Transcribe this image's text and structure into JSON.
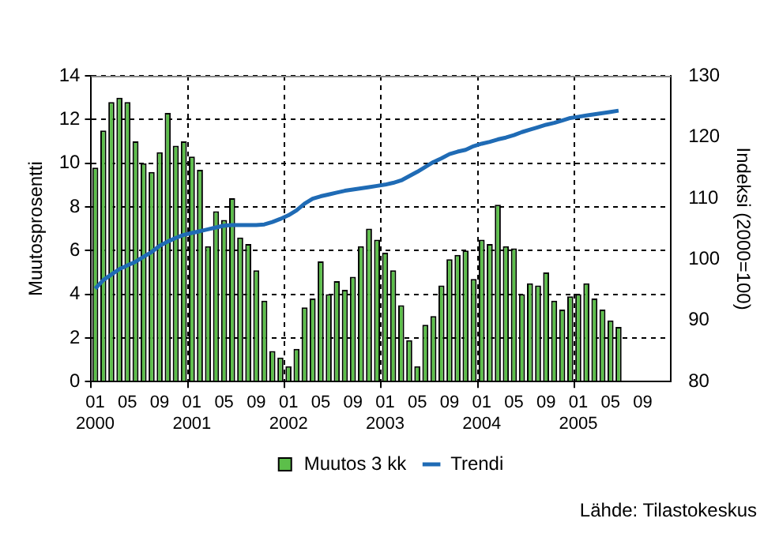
{
  "chart_data": {
    "type": "bar",
    "categories": [
      "01\n2000",
      null,
      null,
      null,
      "05",
      null,
      null,
      null,
      "09",
      null,
      null,
      null,
      "01\n2001",
      null,
      null,
      null,
      "05",
      null,
      null,
      null,
      "09",
      null,
      null,
      null,
      "01\n2002",
      null,
      null,
      null,
      "05",
      null,
      null,
      null,
      "09",
      null,
      null,
      null,
      "01\n2003",
      null,
      null,
      null,
      "05",
      null,
      null,
      null,
      "09",
      null,
      null,
      null,
      "01\n2004",
      null,
      null,
      null,
      "05",
      null,
      null,
      null,
      "09",
      null,
      null,
      null,
      "01\n2005",
      null,
      null,
      null,
      "05",
      null,
      null,
      null,
      "09",
      null,
      null,
      null
    ],
    "series": [
      {
        "name": "Muutos 3 kk",
        "color": "#5cbf4a",
        "values": [
          9.8,
          11.5,
          12.8,
          13.0,
          12.8,
          11.0,
          10.0,
          9.6,
          10.5,
          12.3,
          10.8,
          11.0,
          10.3,
          9.7,
          6.2,
          7.8,
          7.4,
          8.4,
          6.6,
          6.3,
          5.1,
          3.7,
          1.4,
          1.1,
          0.7,
          1.5,
          3.4,
          3.8,
          5.5,
          4.0,
          4.6,
          4.2,
          4.8,
          6.2,
          7.0,
          6.5,
          5.9,
          5.1,
          3.5,
          1.9,
          0.7,
          2.6,
          3.0,
          4.4,
          5.6,
          5.8,
          6.0,
          4.7,
          6.5,
          6.3,
          8.1,
          6.2,
          6.1,
          4.0,
          4.5,
          4.4,
          5.0,
          3.7,
          3.3,
          3.9,
          4.0,
          4.5,
          3.8,
          3.3,
          2.8,
          2.5,
          null,
          null,
          null,
          null,
          null,
          null
        ]
      },
      {
        "name": "Trendi",
        "type": "line",
        "axis": "y2",
        "color": "#1f6bb5",
        "values": [
          95.2,
          96.6,
          97.5,
          98.4,
          99.0,
          99.6,
          100.4,
          101.2,
          102.2,
          102.9,
          103.5,
          104.0,
          104.3,
          104.6,
          104.9,
          105.2,
          105.5,
          105.6,
          105.6,
          105.6,
          105.6,
          105.7,
          106.1,
          106.6,
          107.2,
          108.0,
          109.1,
          109.9,
          110.3,
          110.6,
          110.9,
          111.2,
          111.4,
          111.6,
          111.8,
          112.0,
          112.2,
          112.5,
          112.9,
          113.6,
          114.3,
          115.1,
          115.9,
          116.5,
          117.2,
          117.6,
          117.9,
          118.5,
          118.9,
          119.2,
          119.6,
          119.9,
          120.3,
          120.8,
          121.2,
          121.6,
          122.0,
          122.3,
          122.7,
          123.1,
          123.3,
          123.5,
          123.7,
          123.9,
          124.1,
          124.3,
          null,
          null,
          null,
          null,
          null,
          null
        ]
      }
    ],
    "ylabel": "Muutosprosentti",
    "y2label": "Indeksi (2000=100)",
    "ylim": [
      0,
      14
    ],
    "yticks": [
      0,
      2,
      4,
      6,
      8,
      10,
      12,
      14
    ],
    "y2lim": [
      80,
      130
    ],
    "y2ticks": [
      80,
      90,
      100,
      110,
      120,
      130
    ],
    "grid": true,
    "legend": "bottom",
    "marker": "none",
    "line_style": "solid",
    "annotations": [
      "Lähde: Tilastokeskus"
    ]
  }
}
